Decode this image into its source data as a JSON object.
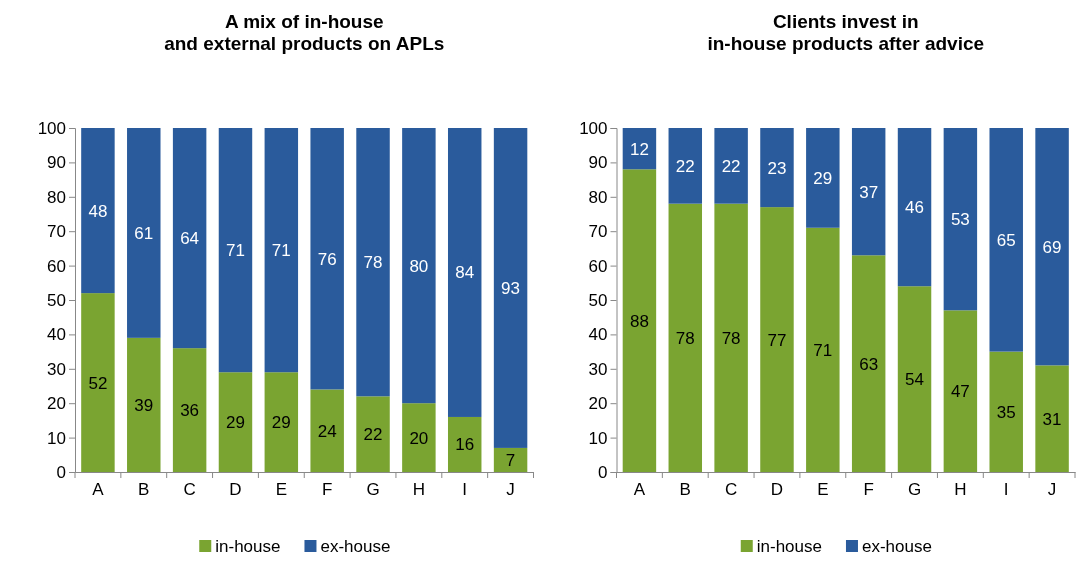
{
  "chart_data": [
    {
      "type": "bar",
      "title": "A mix of in-house\nand external products on APLs",
      "categories": [
        "A",
        "B",
        "C",
        "D",
        "E",
        "F",
        "G",
        "H",
        "I",
        "J"
      ],
      "stacked": true,
      "data_labels": true,
      "legend": "bottom",
      "grid": false,
      "ylim": [
        0,
        100
      ],
      "yticks": [
        0,
        10,
        20,
        30,
        40,
        50,
        60,
        70,
        80,
        90,
        100
      ],
      "series": [
        {
          "name": "in-house",
          "color": "#7aa431",
          "values": [
            52,
            39,
            36,
            29,
            29,
            24,
            22,
            20,
            16,
            7
          ]
        },
        {
          "name": "ex-house",
          "color": "#2a5b9c",
          "values": [
            48,
            61,
            64,
            71,
            71,
            76,
            78,
            80,
            84,
            93
          ]
        }
      ]
    },
    {
      "type": "bar",
      "title": "Clients invest in\nin-house products after advice",
      "categories": [
        "A",
        "B",
        "C",
        "D",
        "E",
        "F",
        "G",
        "H",
        "I",
        "J"
      ],
      "stacked": true,
      "data_labels": true,
      "legend": "bottom",
      "grid": false,
      "ylim": [
        0,
        100
      ],
      "yticks": [
        0,
        10,
        20,
        30,
        40,
        50,
        60,
        70,
        80,
        90,
        100
      ],
      "series": [
        {
          "name": "in-house",
          "color": "#7aa431",
          "values": [
            88,
            78,
            78,
            77,
            71,
            63,
            54,
            47,
            35,
            31
          ]
        },
        {
          "name": "ex-house",
          "color": "#2a5b9c",
          "values": [
            12,
            22,
            22,
            23,
            29,
            37,
            46,
            53,
            65,
            69
          ]
        }
      ]
    }
  ]
}
